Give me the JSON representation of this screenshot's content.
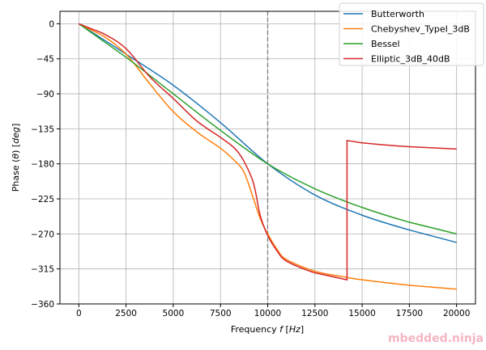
{
  "chart_data": {
    "type": "line",
    "title": "",
    "xlabel": "Frequency f [Hz]",
    "xlabel_parts": {
      "pre": "Frequency ",
      "var": "f",
      "unit": "Hz"
    },
    "ylabel": "Phase (θ) [deg]",
    "ylabel_parts": {
      "pre": "Phase (",
      "var": "θ",
      "mid": ") ",
      "unit": "deg"
    },
    "xlim": [
      -1000,
      21000
    ],
    "ylim": [
      -360,
      16
    ],
    "xticks": [
      0,
      2500,
      5000,
      7500,
      10000,
      12500,
      15000,
      17500,
      20000
    ],
    "yticks": [
      0,
      -45,
      -90,
      -135,
      -180,
      -225,
      -270,
      -315,
      -360
    ],
    "ytick_labels": [
      "0",
      "−45",
      "−90",
      "−135",
      "−180",
      "−225",
      "−270",
      "−315",
      "−360"
    ],
    "grid": true,
    "vline": {
      "x": 10000,
      "style": "dashed",
      "color": "#7f7f7f"
    },
    "legend": "top-right",
    "series": [
      {
        "name": "Butterworth",
        "color": "#1f77b4",
        "x": [
          0,
          2500,
          5000,
          7500,
          10000,
          12500,
          15000,
          17500,
          20000
        ],
        "y": [
          0,
          -39,
          -79,
          -127,
          -180,
          -220,
          -246,
          -265,
          -281
        ]
      },
      {
        "name": "Chebyshev_TypeI_3dB",
        "color": "#ff7f0e",
        "x": [
          0,
          1250,
          2500,
          3750,
          5000,
          6250,
          7500,
          8250,
          8750,
          9250,
          9600,
          10000,
          10500,
          11000,
          12500,
          14000,
          15000,
          17500,
          20000
        ],
        "y": [
          0,
          -15,
          -39,
          -77,
          -113,
          -139,
          -160,
          -176,
          -191,
          -225,
          -250,
          -270,
          -290,
          -303,
          -318,
          -325,
          -329,
          -336,
          -341
        ]
      },
      {
        "name": "Bessel",
        "color": "#2ca02c",
        "x": [
          0,
          2500,
          5000,
          7500,
          10000,
          12500,
          15000,
          17500,
          20000
        ],
        "y": [
          0,
          -43,
          -90,
          -137,
          -180,
          -212,
          -236,
          -255,
          -270
        ]
      },
      {
        "name": "Elliptic_3dB_40dB",
        "color": "#d62728",
        "x": [
          0,
          1250,
          2500,
          3750,
          5000,
          6250,
          7500,
          8250,
          8750,
          9250,
          9600,
          10000,
          10500,
          11000,
          12500,
          14200,
          14200,
          15000,
          17500,
          20000
        ],
        "y": [
          0,
          -12,
          -32,
          -68,
          -96,
          -125,
          -146,
          -160,
          -177,
          -205,
          -246,
          -272,
          -292,
          -305,
          -320,
          -329,
          -150,
          -153,
          -158,
          -161
        ]
      }
    ]
  },
  "watermark": "mbedded.ninja"
}
